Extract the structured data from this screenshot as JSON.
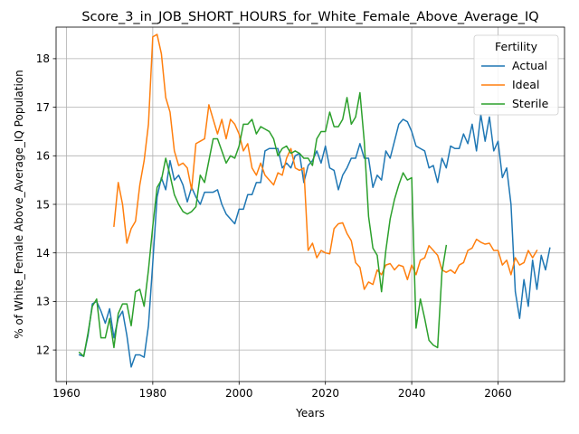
{
  "chart_data": {
    "type": "line",
    "title": "Score_3_in_JOB_SHORT_HOURS_for_White_Female_Above_Average_IQ",
    "xlabel": "Years",
    "ylabel": "% of White_Female Above_Average_IQ Population",
    "xlim": [
      1957.6,
      2075.4
    ],
    "ylim": [
      11.35,
      18.65
    ],
    "xticks": [
      1960,
      1980,
      2000,
      2020,
      2040,
      2060
    ],
    "yticks": [
      12,
      13,
      14,
      15,
      16,
      17,
      18
    ],
    "grid": true,
    "legend": {
      "title": "Fertility",
      "placement": "top-right"
    },
    "colors": {
      "Actual": "#1f77b4",
      "Ideal": "#ff7f0e",
      "Sterile": "#2ca02c"
    },
    "series": [
      {
        "name": "Actual",
        "start_year": 1963,
        "values": [
          11.9,
          11.87,
          12.3,
          12.95,
          13.0,
          12.8,
          12.55,
          12.85,
          12.25,
          12.65,
          12.8,
          12.3,
          11.65,
          11.9,
          11.9,
          11.85,
          12.5,
          13.8,
          15.15,
          15.55,
          15.3,
          15.9,
          15.5,
          15.6,
          15.4,
          15.05,
          15.35,
          15.15,
          15.0,
          15.25,
          15.25,
          15.25,
          15.3,
          15.0,
          14.8,
          14.7,
          14.6,
          14.9,
          14.9,
          15.2,
          15.2,
          15.45,
          15.45,
          16.1,
          16.15,
          16.15,
          16.15,
          15.75,
          15.85,
          15.75,
          16.0,
          16.05,
          15.45,
          15.8,
          15.9,
          16.1,
          15.85,
          16.2,
          15.75,
          15.7,
          15.3,
          15.6,
          15.75,
          15.95,
          15.95,
          16.25,
          15.95,
          15.95,
          15.35,
          15.6,
          15.5,
          16.1,
          15.95,
          16.3,
          16.65,
          16.75,
          16.7,
          16.5,
          16.2,
          16.15,
          16.1,
          15.75,
          15.8,
          15.45,
          15.95,
          15.75,
          16.2,
          16.15,
          16.15,
          16.45,
          16.25,
          16.65,
          16.1,
          16.85,
          16.3,
          16.8,
          16.1,
          16.3,
          15.55,
          15.75,
          15.0,
          13.2,
          12.65,
          13.45,
          12.9,
          13.85,
          13.25,
          13.95,
          13.65,
          14.1
        ]
      },
      {
        "name": "Ideal",
        "start_year": 1971,
        "values": [
          14.55,
          15.45,
          15.0,
          14.2,
          14.5,
          14.65,
          15.4,
          15.9,
          16.65,
          18.45,
          18.5,
          18.1,
          17.2,
          16.9,
          16.1,
          15.8,
          15.85,
          15.75,
          15.3,
          16.25,
          16.3,
          16.35,
          17.05,
          16.75,
          16.45,
          16.75,
          16.35,
          16.75,
          16.65,
          16.45,
          16.1,
          16.25,
          15.75,
          15.6,
          15.85,
          15.6,
          15.5,
          15.4,
          15.65,
          15.6,
          15.95,
          16.15,
          15.75,
          15.7,
          15.75,
          14.05,
          14.2,
          13.9,
          14.05,
          14.0,
          13.98,
          14.5,
          14.6,
          14.62,
          14.4,
          14.25,
          13.8,
          13.7,
          13.25,
          13.4,
          13.35,
          13.65,
          13.55,
          13.75,
          13.78,
          13.65,
          13.75,
          13.72,
          13.45,
          13.75,
          13.55,
          13.85,
          13.9,
          14.15,
          14.05,
          13.95,
          13.65,
          13.6,
          13.65,
          13.58,
          13.75,
          13.8,
          14.05,
          14.1,
          14.28,
          14.22,
          14.18,
          14.2,
          14.05,
          14.05,
          13.75,
          13.85,
          13.55,
          13.9,
          13.75,
          13.8,
          14.05,
          13.9,
          14.05
        ]
      },
      {
        "name": "Sterile",
        "start_year": 1963,
        "values": [
          11.95,
          11.87,
          12.35,
          12.9,
          13.05,
          12.25,
          12.25,
          12.65,
          12.05,
          12.75,
          12.95,
          12.95,
          12.5,
          13.2,
          13.25,
          12.9,
          13.65,
          14.55,
          15.35,
          15.5,
          15.95,
          15.6,
          15.2,
          15.0,
          14.85,
          14.8,
          14.85,
          14.95,
          15.6,
          15.45,
          15.9,
          16.35,
          16.35,
          16.1,
          15.85,
          16.0,
          15.95,
          16.2,
          16.65,
          16.65,
          16.75,
          16.45,
          16.6,
          16.55,
          16.5,
          16.35,
          16.0,
          16.15,
          16.2,
          16.05,
          16.1,
          16.05,
          15.95,
          15.95,
          15.8,
          16.35,
          16.5,
          16.5,
          16.9,
          16.6,
          16.6,
          16.75,
          17.2,
          16.65,
          16.8,
          17.3,
          16.3,
          14.75,
          14.1,
          13.95,
          13.2,
          14.05,
          14.7,
          15.1,
          15.4,
          15.65,
          15.5,
          15.55,
          12.45,
          13.05,
          12.65,
          12.2,
          12.1,
          12.05,
          13.6,
          14.15
        ]
      }
    ]
  }
}
